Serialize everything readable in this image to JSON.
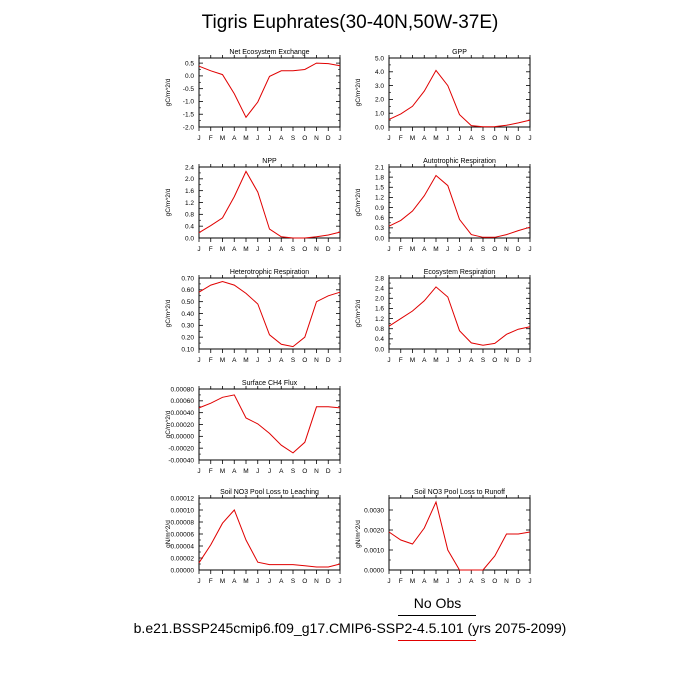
{
  "title": "Tigris Euphrates(30-40N,50W-37E)",
  "footer": {
    "legend_label": "No Obs",
    "caption": "b.e21.BSSP245cmip6.f09_g17.CMIP6-SSP2-4.5.101 (yrs 2075-2099)"
  },
  "colors": {
    "series": "#e00000",
    "axis": "#000000"
  },
  "chart_data": [
    {
      "type": "line",
      "title": "Net Ecosystem Exchange",
      "ylabel": "gC/m^2/d",
      "categories": [
        "J",
        "F",
        "M",
        "A",
        "M",
        "J",
        "J",
        "A",
        "S",
        "O",
        "N",
        "D",
        "J"
      ],
      "values": [
        0.38,
        0.2,
        0.05,
        -0.7,
        -1.62,
        -1.02,
        -0.02,
        0.2,
        0.2,
        0.25,
        0.5,
        0.48,
        0.4
      ],
      "yticks": [
        "0.5",
        "0.0",
        "-0.5",
        "-1.0",
        "-1.5",
        "-2.0"
      ],
      "ytick_values": [
        0.5,
        0.0,
        -0.5,
        -1.0,
        -1.5,
        -2.0
      ],
      "ylim": [
        -2.0,
        0.7
      ]
    },
    {
      "type": "line",
      "title": "GPP",
      "ylabel": "gC/m^2/d",
      "categories": [
        "J",
        "F",
        "M",
        "A",
        "M",
        "J",
        "J",
        "A",
        "S",
        "O",
        "N",
        "D",
        "J"
      ],
      "values": [
        0.55,
        0.95,
        1.5,
        2.6,
        4.1,
        3.0,
        0.9,
        0.1,
        0.02,
        0.03,
        0.12,
        0.3,
        0.5
      ],
      "yticks": [
        "5.0",
        "4.0",
        "3.0",
        "2.0",
        "1.0",
        "0.0"
      ],
      "ytick_values": [
        5.0,
        4.0,
        3.0,
        2.0,
        1.0,
        0.0
      ],
      "ylim": [
        0.0,
        5.0
      ]
    },
    {
      "type": "line",
      "title": "NPP",
      "ylabel": "gC/m^2/d",
      "categories": [
        "J",
        "F",
        "M",
        "A",
        "M",
        "J",
        "J",
        "A",
        "S",
        "O",
        "N",
        "D",
        "J"
      ],
      "values": [
        0.18,
        0.42,
        0.68,
        1.4,
        2.25,
        1.55,
        0.3,
        0.04,
        0.0,
        0.0,
        0.04,
        0.1,
        0.2
      ],
      "yticks": [
        "2.4",
        "2.0",
        "1.6",
        "1.2",
        "0.8",
        "0.4",
        "0.0"
      ],
      "ytick_values": [
        2.4,
        2.0,
        1.6,
        1.2,
        0.8,
        0.4,
        0.0
      ],
      "ylim": [
        0.0,
        2.4
      ]
    },
    {
      "type": "line",
      "title": "Autotrophic Respiration",
      "ylabel": "gC/m^2/d",
      "categories": [
        "J",
        "F",
        "M",
        "A",
        "M",
        "J",
        "J",
        "A",
        "S",
        "O",
        "N",
        "D",
        "J"
      ],
      "values": [
        0.35,
        0.52,
        0.8,
        1.25,
        1.85,
        1.55,
        0.55,
        0.1,
        0.02,
        0.02,
        0.1,
        0.22,
        0.32
      ],
      "yticks": [
        "2.1",
        "1.8",
        "1.5",
        "1.2",
        "0.9",
        "0.6",
        "0.3",
        "0.0"
      ],
      "ytick_values": [
        2.1,
        1.8,
        1.5,
        1.2,
        0.9,
        0.6,
        0.3,
        0.0
      ],
      "ylim": [
        0.0,
        2.1
      ]
    },
    {
      "type": "line",
      "title": "Heterotrophic Respiration",
      "ylabel": "gC/m^2/d",
      "categories": [
        "J",
        "F",
        "M",
        "A",
        "M",
        "J",
        "J",
        "A",
        "S",
        "O",
        "N",
        "D",
        "J"
      ],
      "values": [
        0.58,
        0.64,
        0.67,
        0.64,
        0.57,
        0.48,
        0.22,
        0.14,
        0.12,
        0.2,
        0.5,
        0.55,
        0.58
      ],
      "yticks": [
        "0.70",
        "0.60",
        "0.50",
        "0.40",
        "0.30",
        "0.20",
        "0.10"
      ],
      "ytick_values": [
        0.7,
        0.6,
        0.5,
        0.4,
        0.3,
        0.2,
        0.1
      ],
      "ylim": [
        0.1,
        0.7
      ]
    },
    {
      "type": "line",
      "title": "Ecosystem Respiration",
      "ylabel": "gC/m^2/d",
      "categories": [
        "J",
        "F",
        "M",
        "A",
        "M",
        "J",
        "J",
        "A",
        "S",
        "O",
        "N",
        "D",
        "J"
      ],
      "values": [
        0.9,
        1.2,
        1.5,
        1.9,
        2.45,
        2.05,
        0.72,
        0.24,
        0.15,
        0.22,
        0.58,
        0.78,
        0.88
      ],
      "yticks": [
        "2.8",
        "2.4",
        "2.0",
        "1.6",
        "1.2",
        "0.8",
        "0.4",
        "0.0"
      ],
      "ytick_values": [
        2.8,
        2.4,
        2.0,
        1.6,
        1.2,
        0.8,
        0.4,
        0.0
      ],
      "ylim": [
        0.0,
        2.8
      ]
    },
    {
      "type": "line",
      "title": "Surface CH4 Flux",
      "ylabel": "gC/m^2/d",
      "categories": [
        "J",
        "F",
        "M",
        "A",
        "M",
        "J",
        "J",
        "A",
        "S",
        "O",
        "N",
        "D",
        "J"
      ],
      "values": [
        0.00048,
        0.00056,
        0.00066,
        0.0007,
        0.00031,
        0.00021,
        5e-05,
        -0.00015,
        -0.00028,
        -0.0001,
        0.0005,
        0.0005,
        0.00048
      ],
      "yticks": [
        "0.00080",
        "0.00060",
        "0.00040",
        "0.00020",
        "0.00000",
        "-0.00020",
        "-0.00040"
      ],
      "ytick_values": [
        0.0008,
        0.0006,
        0.0004,
        0.0002,
        0.0,
        -0.0002,
        -0.0004
      ],
      "ylim": [
        -0.0004,
        0.0008
      ]
    },
    {
      "type": "line",
      "title": "Soil NO3 Pool Loss to Leaching",
      "ylabel": "gN/m^2/d",
      "categories": [
        "J",
        "F",
        "M",
        "A",
        "M",
        "J",
        "J",
        "A",
        "S",
        "O",
        "N",
        "D",
        "J"
      ],
      "values": [
        1.2e-05,
        4.2e-05,
        7.8e-05,
        0.0001,
        5e-05,
        1.3e-05,
        9e-06,
        9e-06,
        9e-06,
        7e-06,
        5e-06,
        5e-06,
        1e-05
      ],
      "yticks": [
        "0.00012",
        "0.00010",
        "0.00008",
        "0.00006",
        "0.00004",
        "0.00002",
        "0.00000"
      ],
      "ytick_values": [
        0.00012,
        0.0001,
        8e-05,
        6e-05,
        4e-05,
        2e-05,
        0.0
      ],
      "ylim": [
        0.0,
        0.00012
      ]
    },
    {
      "type": "line",
      "title": "Soil NO3 Pool Loss to Runoff",
      "ylabel": "gN/m^2/d",
      "categories": [
        "J",
        "F",
        "M",
        "A",
        "M",
        "J",
        "J",
        "A",
        "S",
        "O",
        "N",
        "D",
        "J"
      ],
      "values": [
        0.0019,
        0.0015,
        0.0013,
        0.0021,
        0.0034,
        0.001,
        0.0,
        0.0,
        0.0,
        0.0007,
        0.0018,
        0.0018,
        0.0019
      ],
      "yticks": [
        "0.0030",
        "0.0020",
        "0.0010",
        "0.0000"
      ],
      "ytick_values": [
        0.003,
        0.002,
        0.001,
        0.0
      ],
      "ylim": [
        0.0,
        0.0036
      ]
    }
  ]
}
